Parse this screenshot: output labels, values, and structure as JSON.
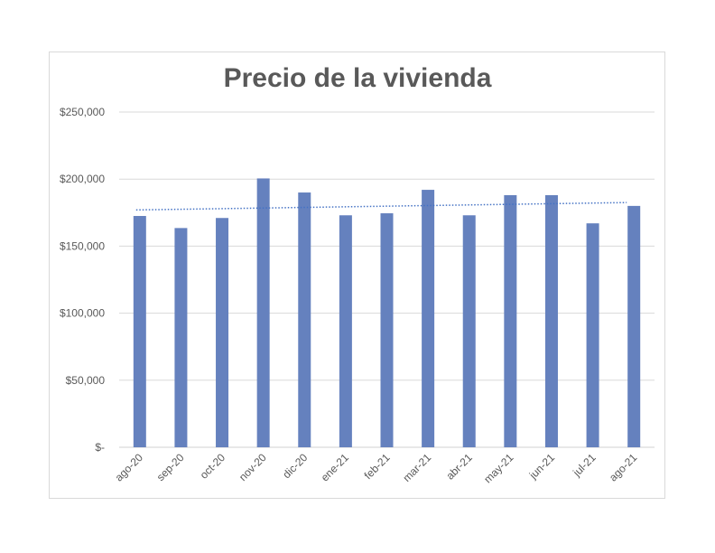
{
  "chart_data": {
    "type": "bar",
    "title": "Precio de la vivienda",
    "categories": [
      "ago-20",
      "sep-20",
      "oct-20",
      "nov-20",
      "dic-20",
      "ene-21",
      "feb-21",
      "mar-21",
      "abr-21",
      "may-21",
      "jun-21",
      "jul-21",
      "ago-21"
    ],
    "series": [
      {
        "values": [
          172500,
          163500,
          171000,
          200500,
          190000,
          173000,
          174500,
          192000,
          173000,
          188000,
          188000,
          167000,
          180000
        ],
        "color": "#6581be"
      }
    ],
    "trendline": {
      "type": "linear",
      "style": "dotted",
      "color": "#4472c4",
      "start": 177000,
      "end": 182500
    },
    "ylim": [
      0,
      250000
    ],
    "yticks": [
      0,
      50000,
      100000,
      150000,
      200000,
      250000
    ],
    "ytick_labels": [
      "$-",
      "$50,000",
      "$100,000",
      "$150,000",
      "$200,000",
      "$250,000"
    ],
    "grid": true,
    "legend": "none",
    "xlabel": "",
    "ylabel": ""
  }
}
